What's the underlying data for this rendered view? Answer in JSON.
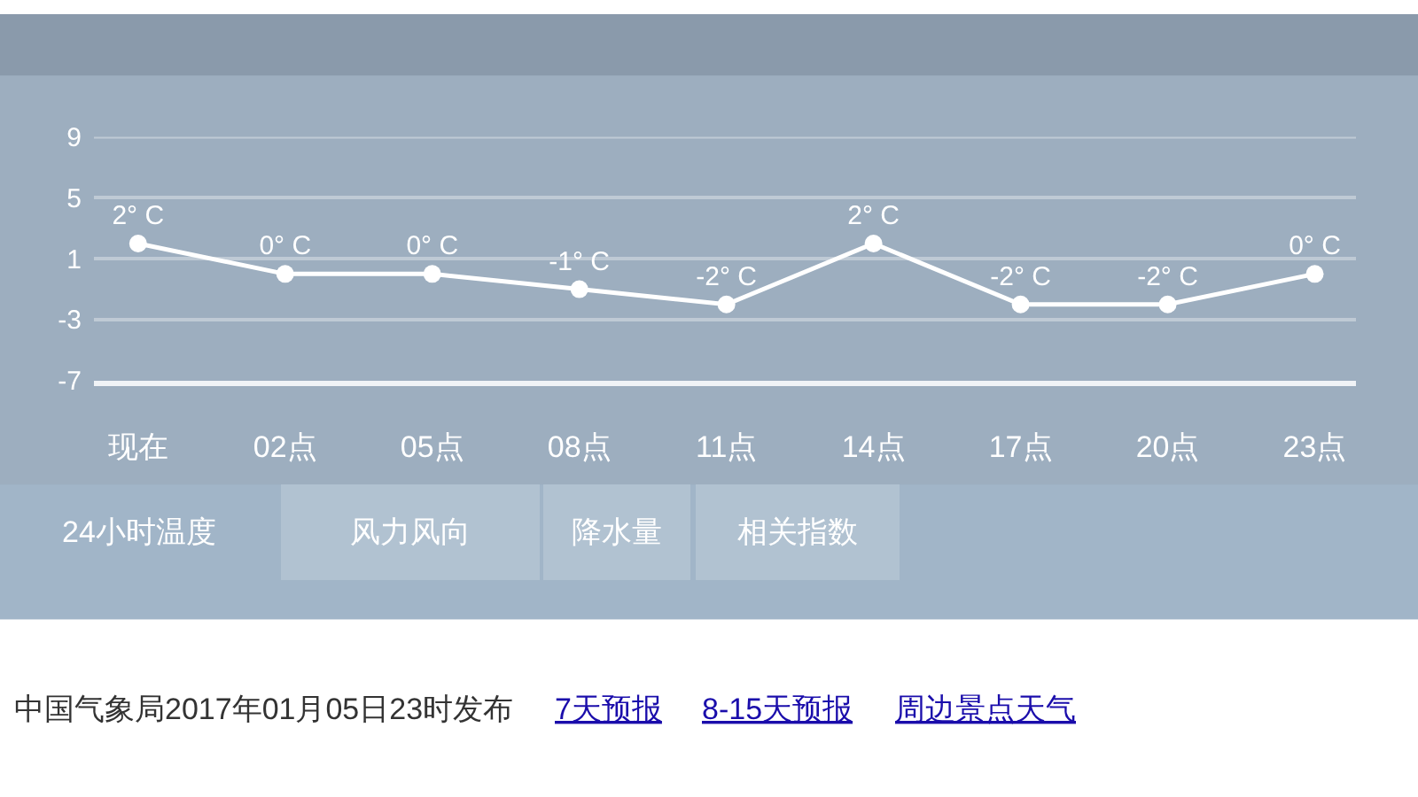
{
  "chart_data": {
    "type": "line",
    "categories": [
      "现在",
      "02点",
      "05点",
      "08点",
      "11点",
      "14点",
      "17点",
      "20点",
      "23点"
    ],
    "series": [
      {
        "color": "#ffffff",
        "values": [
          2,
          0,
          0,
          -1,
          -2,
          2,
          -2,
          -2,
          0
        ],
        "value_labels": [
          "2° C",
          "0° C",
          "0° C",
          "-1° C",
          "-2° C",
          "2° C",
          "-2° C",
          "-2° C",
          "0° C"
        ]
      }
    ],
    "ylim": [
      -7,
      9
    ],
    "yticks": [
      9,
      5,
      1,
      -3,
      -7
    ],
    "grid": "y",
    "marker": "circle",
    "line_style": "solid",
    "annotations": [
      "24小时温度",
      "风力风向",
      "降水量",
      "相关指数",
      "中国气象局2017年01月05日23时发布",
      "7天预报",
      "8-15天预报",
      "周边景点天气"
    ]
  }
}
